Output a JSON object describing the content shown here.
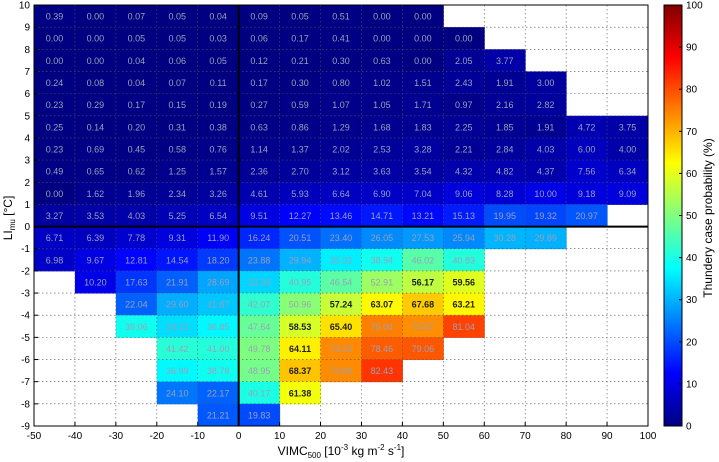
{
  "chart_data": {
    "type": "heatmap",
    "xlabel_main": "VIMC",
    "xlabel_sub": "500",
    "xlabel_unit": " [10",
    "xlabel_exp1": "-3",
    "xlabel_mid": " kg m",
    "xlabel_exp2": "-2",
    "xlabel_end": " s",
    "xlabel_exp3": "-1",
    "xlabel_close": "]",
    "ylabel_main": "LI",
    "ylabel_sub": "mu",
    "ylabel_unit": " [°C]",
    "colorbar_label": "Thundery case probability (%)",
    "colormap": "jet",
    "clim": [
      0,
      100
    ],
    "xlim": [
      -50,
      100
    ],
    "ylim": [
      -9,
      10
    ],
    "bin_width_x": 10,
    "bin_height_y": 1,
    "xticks": [
      -50,
      -40,
      -30,
      -20,
      -10,
      0,
      10,
      20,
      30,
      40,
      50,
      60,
      70,
      80,
      90,
      100
    ],
    "yticks": [
      10,
      9,
      8,
      7,
      6,
      5,
      4,
      3,
      2,
      1,
      0,
      -1,
      -2,
      -3,
      -4,
      -5,
      -6,
      -7,
      -8,
      -9
    ],
    "colorbar_ticks": [
      0,
      10,
      20,
      30,
      40,
      50,
      60,
      70,
      80,
      90,
      100
    ],
    "grid": "dotted",
    "reference_lines": {
      "x": 0,
      "y": 0
    },
    "x_bin_lower_edges": [
      -50,
      -40,
      -30,
      -20,
      -10,
      0,
      10,
      20,
      30,
      40,
      50,
      60,
      70,
      80,
      90
    ],
    "rows": [
      {
        "y_upper": 10,
        "values": [
          0.39,
          0.0,
          0.07,
          0.05,
          0.04,
          0.09,
          0.05,
          0.51,
          0.0,
          0.0,
          null,
          null,
          null,
          null,
          null
        ]
      },
      {
        "y_upper": 9,
        "values": [
          0.0,
          0.0,
          0.05,
          0.05,
          0.03,
          0.06,
          0.17,
          0.41,
          0.0,
          0.0,
          0.0,
          null,
          null,
          null,
          null
        ]
      },
      {
        "y_upper": 8,
        "values": [
          0.0,
          0.0,
          0.04,
          0.06,
          0.05,
          0.12,
          0.21,
          0.3,
          0.63,
          0.0,
          2.05,
          3.77,
          null,
          null,
          null
        ]
      },
      {
        "y_upper": 7,
        "values": [
          0.24,
          0.08,
          0.04,
          0.07,
          0.11,
          0.17,
          0.3,
          0.8,
          1.02,
          1.51,
          2.43,
          1.91,
          3.0,
          null,
          null
        ]
      },
      {
        "y_upper": 6,
        "values": [
          0.23,
          0.29,
          0.17,
          0.15,
          0.19,
          0.27,
          0.59,
          1.07,
          1.05,
          1.71,
          0.97,
          2.16,
          2.82,
          null,
          null
        ]
      },
      {
        "y_upper": 5,
        "values": [
          0.25,
          0.14,
          0.2,
          0.31,
          0.38,
          0.63,
          0.86,
          1.29,
          1.68,
          1.83,
          2.25,
          1.85,
          1.91,
          4.72,
          3.75
        ]
      },
      {
        "y_upper": 4,
        "values": [
          0.23,
          0.69,
          0.45,
          0.58,
          0.76,
          1.14,
          1.37,
          2.02,
          2.53,
          3.28,
          2.21,
          2.84,
          4.03,
          6.0,
          4.0
        ]
      },
      {
        "y_upper": 3,
        "values": [
          0.49,
          0.65,
          0.62,
          1.25,
          1.57,
          2.36,
          2.7,
          3.12,
          3.63,
          3.54,
          4.32,
          4.82,
          4.37,
          7.56,
          6.34
        ]
      },
      {
        "y_upper": 2,
        "values": [
          0.0,
          1.62,
          1.96,
          2.34,
          3.26,
          4.61,
          5.93,
          6.64,
          6.9,
          7.04,
          9.06,
          8.28,
          10.0,
          9.18,
          9.09
        ]
      },
      {
        "y_upper": 1,
        "values": [
          3.27,
          3.53,
          4.03,
          5.25,
          6.54,
          9.51,
          12.27,
          13.46,
          14.71,
          13.21,
          15.13,
          19.95,
          19.32,
          20.97,
          null
        ]
      },
      {
        "y_upper": 0,
        "values": [
          6.71,
          6.39,
          7.78,
          9.31,
          11.9,
          16.24,
          20.51,
          23.4,
          26.05,
          27.53,
          25.94,
          30.28,
          29.89,
          null,
          null
        ]
      },
      {
        "y_upper": -1,
        "values": [
          6.98,
          9.67,
          12.81,
          14.54,
          18.2,
          23.88,
          29.94,
          35.92,
          38.94,
          46.02,
          40.83,
          null,
          null,
          null,
          null
        ]
      },
      {
        "y_upper": -2,
        "values": [
          null,
          10.2,
          17.63,
          21.91,
          28.69,
          33.39,
          40.95,
          46.54,
          52.91,
          56.17,
          59.56,
          null,
          null,
          null,
          null
        ]
      },
      {
        "y_upper": -3,
        "values": [
          null,
          null,
          22.04,
          29.6,
          31.87,
          42.07,
          50.96,
          57.24,
          63.07,
          67.68,
          63.21,
          null,
          null,
          null,
          null
        ]
      },
      {
        "y_upper": -4,
        "values": [
          null,
          null,
          39.06,
          34.13,
          36.85,
          47.64,
          58.53,
          65.4,
          75.04,
          73.57,
          81.04,
          null,
          null,
          null,
          null
        ]
      },
      {
        "y_upper": -5,
        "values": [
          null,
          null,
          null,
          41.42,
          41.0,
          49.78,
          64.11,
          74.1,
          78.46,
          79.06,
          null,
          null,
          null,
          null,
          null
        ]
      },
      {
        "y_upper": -6,
        "values": [
          null,
          null,
          null,
          36.99,
          38.78,
          48.95,
          68.37,
          73.83,
          82.43,
          null,
          null,
          null,
          null,
          null,
          null
        ]
      },
      {
        "y_upper": -7,
        "values": [
          null,
          null,
          null,
          24.1,
          22.17,
          40.17,
          61.38,
          null,
          null,
          null,
          null,
          null,
          null,
          null,
          null
        ]
      },
      {
        "y_upper": -8,
        "values": [
          null,
          null,
          null,
          null,
          21.21,
          19.83,
          null,
          null,
          null,
          null,
          null,
          null,
          null,
          null,
          null
        ]
      }
    ]
  }
}
